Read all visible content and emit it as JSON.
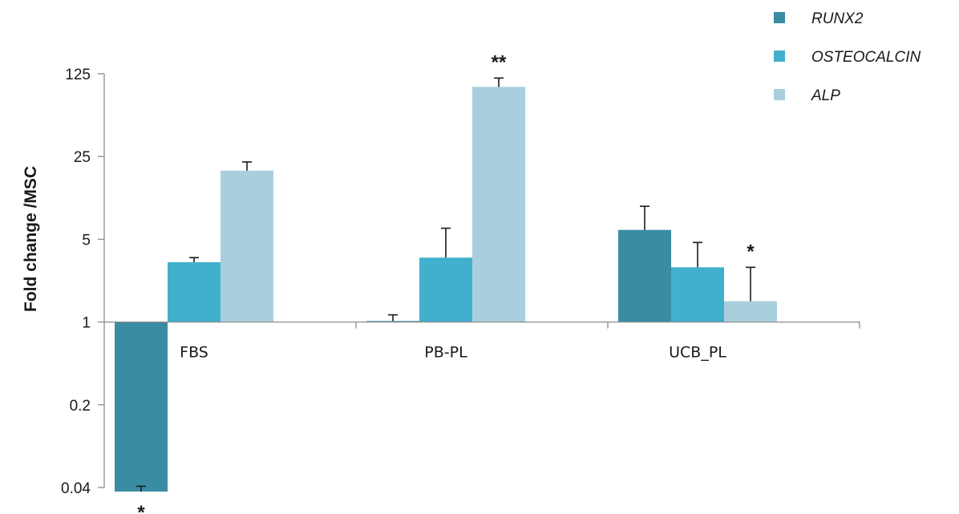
{
  "chart_data": {
    "type": "bar",
    "title": "",
    "xlabel": "",
    "ylabel": "Fold change /MSC",
    "y_scale": "log5",
    "ylim": [
      0.04,
      125
    ],
    "yticks": [
      0.04,
      0.2,
      1,
      5,
      25,
      125
    ],
    "ytick_labels": [
      "0.04",
      "0.2",
      "1",
      "5",
      "25",
      "125"
    ],
    "baseline": 1,
    "categories": [
      "FBS",
      "PB-PL",
      "UCB_PL"
    ],
    "legend_position": "top-right",
    "grid": false,
    "series": [
      {
        "name": "RUNX2",
        "color": "#3a8ca3",
        "values": [
          0.037,
          1.02,
          6.0
        ],
        "err_upper": [
          0.041,
          1.15,
          9.5
        ],
        "sig": [
          "*",
          "",
          ""
        ]
      },
      {
        "name": "OSTEOCALCIN",
        "color": "#41b0cc",
        "values": [
          3.2,
          3.5,
          2.9
        ],
        "err_upper": [
          3.5,
          6.2,
          4.7
        ],
        "sig": [
          "",
          "",
          ""
        ]
      },
      {
        "name": "ALP",
        "color": "#a9cfde",
        "values": [
          19.0,
          97.0,
          1.5
        ],
        "err_upper": [
          22.5,
          115.0,
          2.9
        ],
        "sig": [
          "",
          "**",
          "*"
        ]
      }
    ]
  }
}
